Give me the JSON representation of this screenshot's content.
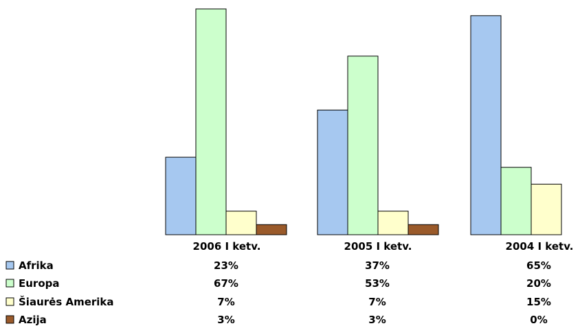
{
  "chart_data": {
    "type": "bar",
    "categories": [
      "2006 I ketv.",
      "2005 I ketv.",
      "2004 I ketv."
    ],
    "series": [
      {
        "name": "Afrika",
        "values": [
          23,
          37,
          65
        ],
        "labels": [
          "23%",
          "37%",
          "65%"
        ],
        "color": "#a6c8f0"
      },
      {
        "name": "Europa",
        "values": [
          67,
          53,
          20
        ],
        "labels": [
          "67%",
          "53%",
          "20%"
        ],
        "color": "#ccffcc"
      },
      {
        "name": "Šiaurės Amerika",
        "values": [
          7,
          7,
          15
        ],
        "labels": [
          "7%",
          "7%",
          "15%"
        ],
        "color": "#ffffcc"
      },
      {
        "name": "Azija",
        "values": [
          3,
          3,
          0
        ],
        "labels": [
          "3%",
          "3%",
          "0%"
        ],
        "color": "#9a5a2a"
      }
    ],
    "ylim": [
      0,
      70
    ],
    "grid": false,
    "legend": "data-table-bottom-left"
  }
}
